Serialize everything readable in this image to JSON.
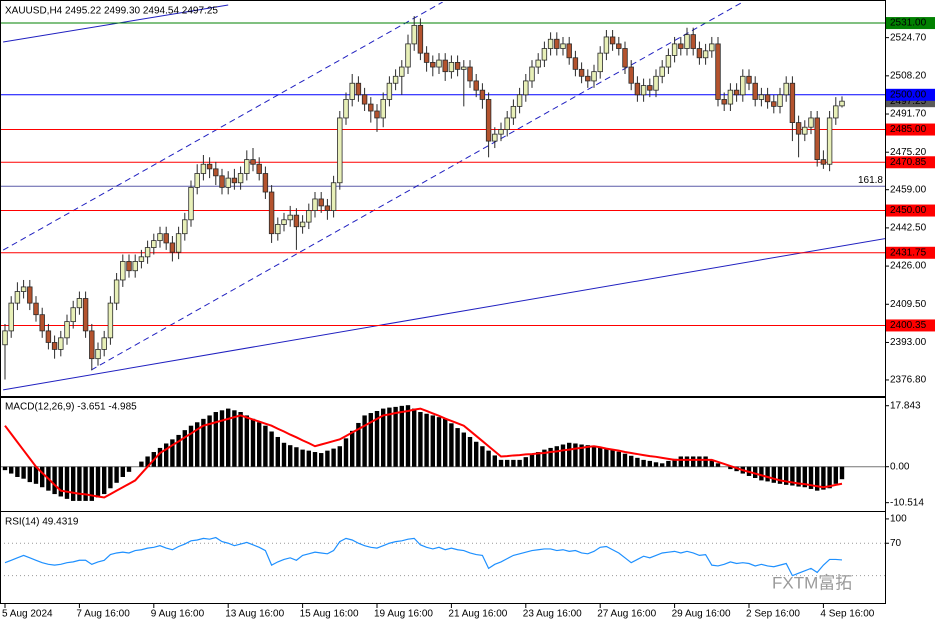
{
  "chart_data": [
    {
      "type": "candlestick",
      "header": "XAUUSD,H4  2495.22 2499.30 2494.54 2497.25",
      "up_color": "#e8f0b8",
      "down_color": "#b4532e",
      "outline": "#2a2a2a",
      "ylim": [
        2370.3,
        2540.1
      ],
      "yticks": [
        {
          "value": 2524.7,
          "label": "2524.70"
        },
        {
          "value": 2508.2,
          "label": "2508.20"
        },
        {
          "value": 2491.7,
          "label": "2491.70"
        },
        {
          "value": 2475.2,
          "label": "2475.20"
        },
        {
          "value": 2459,
          "label": "2459.00"
        },
        {
          "value": 2442.5,
          "label": "2442.50"
        },
        {
          "value": 2426,
          "label": "2426.00"
        },
        {
          "value": 2409.5,
          "label": "2409.50"
        },
        {
          "value": 2393,
          "label": "2393.00"
        },
        {
          "value": 2376.8,
          "label": "2376.80"
        }
      ],
      "xticks": [
        {
          "value": 0,
          "label": "5 Aug 2024"
        },
        {
          "value": 12,
          "label": "7 Aug 16:00"
        },
        {
          "value": 24,
          "label": "9 Aug 16:00"
        },
        {
          "value": 36,
          "label": "13 Aug 16:00"
        },
        {
          "value": 48,
          "label": "15 Aug 16:00"
        },
        {
          "value": 60,
          "label": "19 Aug 16:00"
        },
        {
          "value": 72,
          "label": "21 Aug 16:00"
        },
        {
          "value": 84,
          "label": "23 Aug 16:00"
        },
        {
          "value": 96,
          "label": "27 Aug 16:00"
        },
        {
          "value": 108,
          "label": "29 Aug 16:00"
        },
        {
          "value": 120,
          "label": "2 Sep 16:00"
        },
        {
          "value": 132,
          "label": "4 Sep 16:00"
        }
      ],
      "current": {
        "value": 2497.25,
        "label": "2497.25",
        "color": "#5a5a5a"
      },
      "levels": [
        {
          "value": 2531,
          "label": "2531.00",
          "color": "#008000"
        },
        {
          "value": 2500,
          "label": "2500.00",
          "color": "#0000ff"
        },
        {
          "value": 2485,
          "label": "2485.00",
          "color": "#ff0000"
        },
        {
          "value": 2470.85,
          "label": "2470.85",
          "color": "#ff0000"
        },
        {
          "value": 2450,
          "label": "2450.00",
          "color": "#ff0000"
        },
        {
          "value": 2431.75,
          "label": "2431.75",
          "color": "#ff0000"
        },
        {
          "value": 2400.35,
          "label": "2400.35",
          "color": "#ff0000"
        }
      ],
      "fib": {
        "value": 2460.5,
        "label": "161.8",
        "color": "#5c5ca8"
      },
      "trendlines": [
        {
          "from": [
            -0.3,
            2522.8
          ],
          "to": [
            36,
            2538.8
          ],
          "color": "#2020c0",
          "dash": false
        },
        {
          "from": [
            -0.3,
            2432.9
          ],
          "to": [
            70.6,
            2540.1
          ],
          "color": "#2020c0",
          "dash": true
        },
        {
          "from": [
            13.9,
            2381.1
          ],
          "to": [
            119,
            2540.1
          ],
          "color": "#2020c0",
          "dash": true
        },
        {
          "from": [
            -0.3,
            2372.5
          ],
          "to": [
            142.4,
            2438.1
          ],
          "color": "#2020c0",
          "dash": false
        }
      ],
      "open": [
        2392,
        2398,
        2410,
        2415,
        2417,
        2410,
        2405,
        2398,
        2393,
        2390,
        2395,
        2402,
        2408,
        2412,
        2398,
        2386,
        2390,
        2395,
        2410,
        2420,
        2428,
        2424,
        2428,
        2430,
        2434,
        2437,
        2440,
        2436,
        2432,
        2440,
        2446,
        2460,
        2466,
        2470,
        2468,
        2465,
        2460,
        2464,
        2462,
        2466,
        2472,
        2470,
        2466,
        2458,
        2440,
        2444,
        2446,
        2448,
        2443,
        2445,
        2450,
        2455,
        2452,
        2450,
        2462,
        2490,
        2498,
        2505,
        2500,
        2496,
        2493,
        2490,
        2498,
        2505,
        2508,
        2512,
        2522,
        2530,
        2518,
        2514,
        2512,
        2515,
        2510,
        2514,
        2511,
        2512,
        2506,
        2502,
        2498,
        2480,
        2483,
        2485,
        2490,
        2495,
        2500,
        2506,
        2512,
        2515,
        2520,
        2524,
        2520,
        2522,
        2516,
        2511,
        2508,
        2506,
        2510,
        2518,
        2525,
        2522,
        2520,
        2512,
        2505,
        2500,
        2504,
        2502,
        2508,
        2512,
        2517,
        2522,
        2520,
        2526,
        2520,
        2516,
        2519,
        2522,
        2498,
        2496,
        2502,
        2500,
        2508,
        2505,
        2498,
        2500,
        2497,
        2495,
        2500,
        2505,
        2488,
        2483,
        2486,
        2490,
        2472,
        2470,
        2490,
        2495.22
      ],
      "high": [
        2401,
        2413,
        2419,
        2420,
        2420,
        2413,
        2408,
        2401,
        2396,
        2398,
        2405,
        2411,
        2415,
        2415,
        2401,
        2393,
        2398,
        2413,
        2423,
        2431,
        2431,
        2431,
        2433,
        2437,
        2440,
        2443,
        2443,
        2439,
        2443,
        2449,
        2463,
        2470,
        2474,
        2473,
        2471,
        2468,
        2467,
        2468,
        2469,
        2476,
        2477,
        2473,
        2469,
        2461,
        2447,
        2449,
        2452,
        2451,
        2448,
        2453,
        2458,
        2458,
        2455,
        2465,
        2493,
        2501,
        2509,
        2508,
        2503,
        2499,
        2496,
        2501,
        2508,
        2511,
        2515,
        2526,
        2534,
        2533,
        2521,
        2517,
        2518,
        2518,
        2517,
        2517,
        2515,
        2515,
        2509,
        2505,
        2501,
        2486,
        2488,
        2493,
        2498,
        2503,
        2509,
        2515,
        2518,
        2523,
        2527,
        2527,
        2525,
        2525,
        2519,
        2514,
        2511,
        2513,
        2521,
        2528,
        2528,
        2525,
        2523,
        2515,
        2508,
        2507,
        2507,
        2511,
        2515,
        2520,
        2525,
        2525,
        2529,
        2529,
        2523,
        2522,
        2525,
        2525,
        2501,
        2505,
        2505,
        2511,
        2511,
        2508,
        2503,
        2503,
        2500,
        2503,
        2508,
        2508,
        2491,
        2489,
        2493,
        2493,
        2476,
        2493,
        2499,
        2499.3
      ],
      "low": [
        2377,
        2395,
        2407,
        2412,
        2407,
        2402,
        2395,
        2390,
        2386,
        2387,
        2392,
        2399,
        2405,
        2395,
        2381,
        2383,
        2387,
        2392,
        2407,
        2417,
        2421,
        2421,
        2425,
        2427,
        2431,
        2434,
        2433,
        2428,
        2429,
        2437,
        2443,
        2457,
        2463,
        2464,
        2461,
        2457,
        2457,
        2459,
        2459,
        2463,
        2467,
        2463,
        2455,
        2436,
        2437,
        2441,
        2443,
        2433,
        2440,
        2442,
        2447,
        2449,
        2446,
        2447,
        2459,
        2487,
        2495,
        2497,
        2493,
        2488,
        2484,
        2486,
        2495,
        2502,
        2500,
        2509,
        2519,
        2515,
        2510,
        2508,
        2509,
        2506,
        2507,
        2508,
        2495,
        2503,
        2499,
        2494,
        2473,
        2477,
        2480,
        2482,
        2487,
        2492,
        2497,
        2503,
        2509,
        2512,
        2517,
        2517,
        2517,
        2513,
        2508,
        2505,
        2503,
        2503,
        2507,
        2515,
        2519,
        2517,
        2509,
        2502,
        2497,
        2497,
        2499,
        2499,
        2505,
        2509,
        2514,
        2517,
        2517,
        2517,
        2513,
        2513,
        2516,
        2495,
        2493,
        2493,
        2497,
        2497,
        2502,
        2495,
        2495,
        2494,
        2492,
        2492,
        2497,
        2480,
        2473,
        2480,
        2483,
        2469,
        2468,
        2467,
        2487,
        2494.54
      ],
      "close": [
        2398,
        2410,
        2415,
        2417,
        2410,
        2405,
        2398,
        2393,
        2390,
        2395,
        2402,
        2408,
        2412,
        2398,
        2386,
        2390,
        2395,
        2410,
        2420,
        2428,
        2424,
        2428,
        2430,
        2434,
        2437,
        2440,
        2436,
        2432,
        2440,
        2446,
        2460,
        2466,
        2470,
        2468,
        2465,
        2460,
        2464,
        2462,
        2466,
        2472,
        2470,
        2466,
        2458,
        2440,
        2444,
        2446,
        2448,
        2443,
        2445,
        2450,
        2455,
        2452,
        2450,
        2462,
        2490,
        2498,
        2505,
        2500,
        2496,
        2493,
        2490,
        2498,
        2505,
        2508,
        2512,
        2522,
        2530,
        2518,
        2514,
        2512,
        2515,
        2510,
        2514,
        2511,
        2512,
        2506,
        2502,
        2498,
        2480,
        2483,
        2485,
        2490,
        2495,
        2500,
        2506,
        2512,
        2515,
        2520,
        2524,
        2520,
        2522,
        2516,
        2511,
        2508,
        2506,
        2510,
        2518,
        2525,
        2522,
        2520,
        2512,
        2505,
        2500,
        2504,
        2502,
        2508,
        2512,
        2517,
        2522,
        2520,
        2526,
        2520,
        2516,
        2519,
        2522,
        2498,
        2496,
        2502,
        2500,
        2508,
        2505,
        2498,
        2500,
        2497,
        2495,
        2500,
        2505,
        2488,
        2483,
        2486,
        2490,
        2472,
        2470,
        2490,
        2495.22,
        2497.25
      ]
    },
    {
      "type": "bar",
      "header": "MACD(12,26,9) -3.651 -4.985",
      "color": "#000000",
      "signal_color": "#ff0000",
      "zero_line": true,
      "ylim": [
        -12.95,
        20.1
      ],
      "yticks": [
        17.843,
        {
          "value": 0,
          "label": "0.00"
        },
        -10.514
      ],
      "values": [
        -1,
        -2,
        -3,
        -3.5,
        -4.5,
        -5,
        -6,
        -7,
        -8,
        -8.7,
        -9.4,
        -10,
        -10,
        -10,
        -10,
        -9,
        -8,
        -6.3,
        -4.7,
        -3,
        -1.5,
        0,
        1.5,
        3,
        4.3,
        5.5,
        6.8,
        8,
        9.3,
        10.7,
        12,
        13,
        14,
        15,
        16,
        16.5,
        17,
        16.5,
        16,
        15,
        14,
        13,
        12,
        10.3,
        8.7,
        7,
        6.3,
        5.7,
        5,
        4.7,
        4.3,
        4,
        4.7,
        5.3,
        6,
        8.3,
        10.5,
        12.8,
        15,
        15.7,
        16.3,
        17,
        17.3,
        17.5,
        17.8,
        18,
        17,
        16,
        15.5,
        15,
        14.5,
        14,
        12.7,
        11.3,
        10,
        8.7,
        7.3,
        6,
        4.7,
        3.3,
        2,
        2,
        2,
        2,
        2.8,
        3.5,
        4.3,
        5,
        5.5,
        6,
        6.5,
        7,
        6.8,
        6.5,
        6.3,
        6,
        5.7,
        5.3,
        5,
        4.4,
        3.8,
        3.2,
        2.6,
        2,
        1.7,
        1.3,
        1,
        1.7,
        2.3,
        3,
        3,
        3,
        3,
        3,
        2,
        1,
        0,
        -0.7,
        -1.3,
        -2,
        -2.7,
        -3.3,
        -4,
        -4.3,
        -4.7,
        -5,
        -5.3,
        -5.5,
        -5.8,
        -6,
        -6.5,
        -7,
        -6.7,
        -6.3,
        -5,
        -3.651
      ],
      "signal": [
        12,
        9.6,
        7.2,
        4.8,
        2.4,
        0,
        -1.8,
        -3.5,
        -5.3,
        -7,
        -7.3,
        -7.6,
        -7.9,
        -8.1,
        -8.4,
        -8.7,
        -9,
        -8,
        -7,
        -6,
        -5,
        -4,
        -2,
        0,
        2,
        4,
        5.1,
        6.3,
        7.4,
        8.6,
        9.7,
        10.9,
        12,
        12.5,
        13,
        13.5,
        14,
        14.5,
        15,
        14.4,
        13.8,
        13.2,
        12.6,
        12,
        11.1,
        10.3,
        9.4,
        8.6,
        7.7,
        6.9,
        6,
        6.5,
        7,
        7.5,
        8,
        9,
        10,
        11,
        12,
        13,
        14,
        15,
        15.3,
        15.7,
        16,
        16.3,
        16.7,
        17,
        16.3,
        15.6,
        14.9,
        14.1,
        13.4,
        12.7,
        12,
        10.5,
        9,
        7.5,
        6,
        4.5,
        3,
        3.1,
        3.3,
        3.4,
        3.6,
        3.7,
        3.9,
        4,
        4.3,
        4.5,
        4.8,
        5,
        5.3,
        5.5,
        5.8,
        6,
        5.7,
        5.3,
        5,
        4.7,
        4.3,
        4,
        3.7,
        3.4,
        3.1,
        2.9,
        2.6,
        2.3,
        2,
        2,
        2,
        2,
        2,
        2,
        2,
        1.4,
        0.8,
        0.2,
        -0.4,
        -1,
        -1.5,
        -2,
        -2.5,
        -3,
        -3.5,
        -4,
        -4.3,
        -4.6,
        -4.9,
        -5.1,
        -5.4,
        -5.7,
        -6,
        -5.7,
        -5.3,
        -4.985
      ]
    },
    {
      "type": "line",
      "header": "RSI(14) 49.4319",
      "color": "#1e90ff",
      "level_color": "#999999",
      "ylim": [
        -3.7,
        107.3
      ],
      "yticks": [
        100,
        70
      ],
      "levels": [
        70,
        30
      ],
      "values": [
        46,
        49,
        52,
        55,
        52,
        49,
        46,
        44,
        43,
        44,
        46,
        47,
        49,
        49,
        44,
        47,
        49,
        56,
        58,
        59,
        58,
        61,
        62,
        64,
        65,
        67,
        64,
        62,
        66,
        69,
        73,
        74,
        76,
        75,
        77,
        72,
        70,
        67,
        69,
        71,
        68,
        65,
        61,
        43,
        47,
        50,
        52,
        49,
        55,
        57,
        59,
        58,
        57,
        61,
        72,
        76,
        74,
        70,
        67,
        65,
        64,
        67,
        70,
        72,
        73,
        75,
        76,
        68,
        65,
        63,
        65,
        62,
        64,
        62,
        61,
        58,
        56,
        55,
        39,
        44,
        47,
        51,
        55,
        57,
        59,
        61,
        62,
        63,
        63,
        61,
        62,
        60,
        61,
        58,
        57,
        60,
        65,
        66,
        62,
        58,
        52,
        46,
        50,
        54,
        52,
        55,
        58,
        59,
        60,
        58,
        60,
        58,
        55,
        56,
        43,
        42,
        44,
        47,
        45,
        46,
        45,
        42,
        44,
        42,
        41,
        43,
        45,
        30,
        33,
        36,
        39,
        34,
        43,
        50,
        50,
        49.4319
      ]
    }
  ],
  "watermark": "FXTM富拓"
}
